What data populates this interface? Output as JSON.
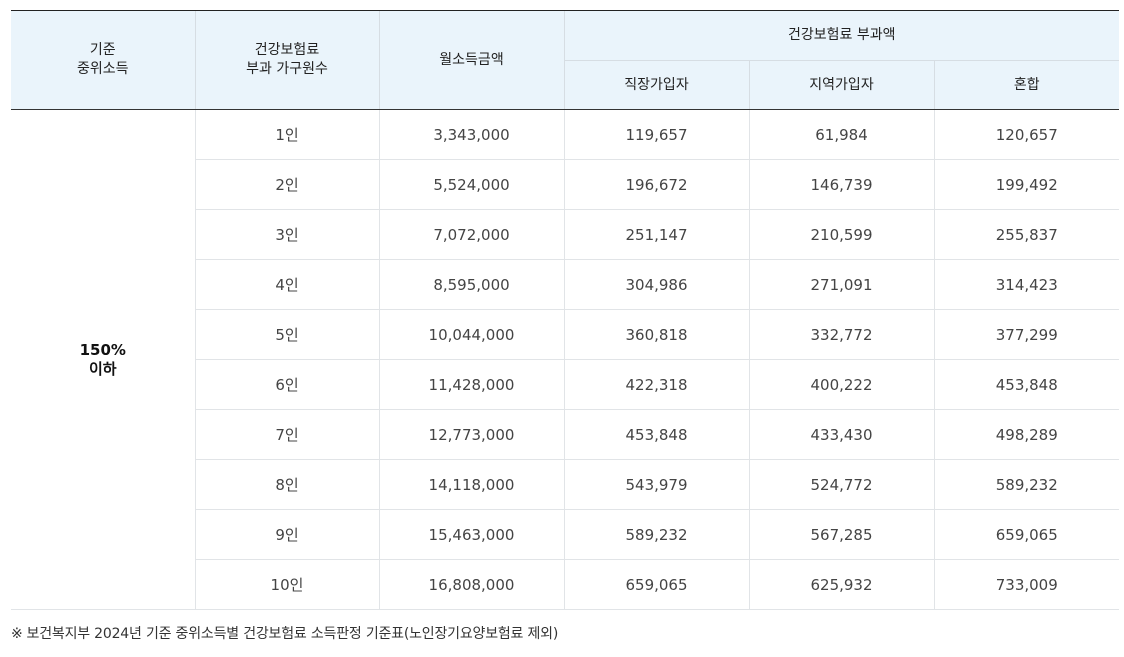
{
  "table": {
    "headers": {
      "median_income": [
        "기준",
        "중위소득"
      ],
      "household_count": [
        "건강보험료",
        "부과 가구원수"
      ],
      "monthly_income": "월소득금액",
      "premium_group": "건강보험료 부과액",
      "employee": "직장가입자",
      "regional": "지역가입자",
      "mixed": "혼합"
    },
    "group_label": [
      "150%",
      "이하"
    ],
    "rows": [
      {
        "household": "1인",
        "income": "3,343,000",
        "employee": "119,657",
        "regional": "61,984",
        "mixed": "120,657"
      },
      {
        "household": "2인",
        "income": "5,524,000",
        "employee": "196,672",
        "regional": "146,739",
        "mixed": "199,492"
      },
      {
        "household": "3인",
        "income": "7,072,000",
        "employee": "251,147",
        "regional": "210,599",
        "mixed": "255,837"
      },
      {
        "household": "4인",
        "income": "8,595,000",
        "employee": "304,986",
        "regional": "271,091",
        "mixed": "314,423"
      },
      {
        "household": "5인",
        "income": "10,044,000",
        "employee": "360,818",
        "regional": "332,772",
        "mixed": "377,299"
      },
      {
        "household": "6인",
        "income": "11,428,000",
        "employee": "422,318",
        "regional": "400,222",
        "mixed": "453,848"
      },
      {
        "household": "7인",
        "income": "12,773,000",
        "employee": "453,848",
        "regional": "433,430",
        "mixed": "498,289"
      },
      {
        "household": "8인",
        "income": "14,118,000",
        "employee": "543,979",
        "regional": "524,772",
        "mixed": "589,232"
      },
      {
        "household": "9인",
        "income": "15,463,000",
        "employee": "589,232",
        "regional": "567,285",
        "mixed": "659,065"
      },
      {
        "household": "10인",
        "income": "16,808,000",
        "employee": "659,065",
        "regional": "625,932",
        "mixed": "733,009"
      }
    ]
  },
  "note": {
    "mark": "※",
    "text": "보건복지부 2024년 기준 중위소득별 건강보험료 소득판정 기준표(노인장기요양보험료 제외)"
  },
  "colors": {
    "header_bg": "#eaf4fb",
    "top_border": "#222222",
    "grid": "#e1e4e7"
  }
}
